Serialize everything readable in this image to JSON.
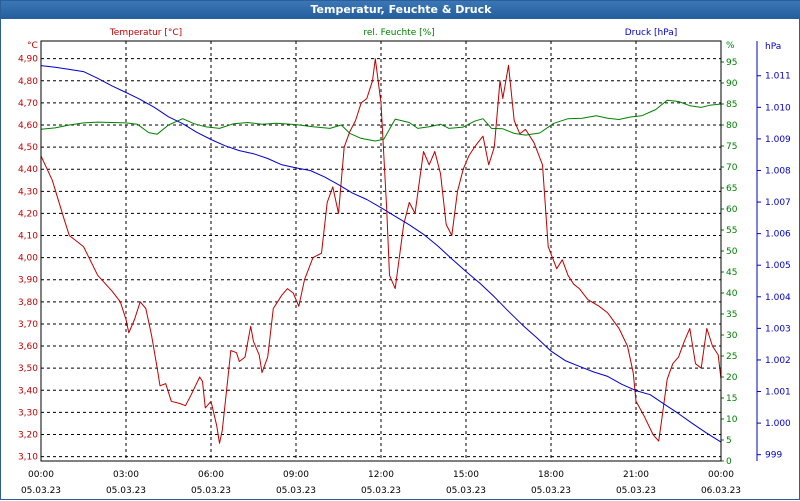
{
  "window": {
    "title": "Temperatur, Feuchte & Druck"
  },
  "colors": {
    "temperature": "#c00000",
    "humidity": "#008000",
    "pressure": "#0000cc",
    "titlebar": "#2c67a7",
    "grid": "#000000"
  },
  "chart_data": {
    "type": "line",
    "title": "Temperatur, Feuchte & Druck",
    "x": {
      "range_hours": [
        0,
        24
      ],
      "ticks": [
        {
          "time": "00:00",
          "date": "05.03.23"
        },
        {
          "time": "03:00",
          "date": "05.03.23"
        },
        {
          "time": "06:00",
          "date": "05.03.23"
        },
        {
          "time": "09:00",
          "date": "05.03.23"
        },
        {
          "time": "12:00",
          "date": "05.03.23"
        },
        {
          "time": "15:00",
          "date": "05.03.23"
        },
        {
          "time": "18:00",
          "date": "05.03.23"
        },
        {
          "time": "21:00",
          "date": "05.03.23"
        },
        {
          "time": "00:00",
          "date": "06.03.23"
        }
      ]
    },
    "axes": {
      "left": {
        "label": "Temperatur [°C]",
        "unit": "°C",
        "range": [
          3.08,
          4.98
        ],
        "ticks": [
          "3,10",
          "3,20",
          "3,30",
          "3,40",
          "3,50",
          "3,60",
          "3,70",
          "3,80",
          "3,90",
          "4,00",
          "4,10",
          "4,20",
          "4,30",
          "4,40",
          "4,50",
          "4,60",
          "4,70",
          "4,80",
          "4,90"
        ]
      },
      "middle": {
        "label": "rel. Feuchte [%]",
        "unit": "%",
        "range": [
          0,
          100
        ],
        "ticks": [
          "0",
          "5",
          "10",
          "15",
          "20",
          "25",
          "30",
          "35",
          "40",
          "45",
          "50",
          "55",
          "60",
          "65",
          "70",
          "75",
          "80",
          "85",
          "90",
          "95"
        ]
      },
      "right": {
        "label": "Druck [hPa]",
        "unit": "hPa",
        "range": [
          998.8,
          1012.1
        ],
        "ticks": [
          "999",
          "1.000",
          "1.001",
          "1.002",
          "1.003",
          "1.004",
          "1.005",
          "1.006",
          "1.007",
          "1.008",
          "1.009",
          "1.010",
          "1.011"
        ]
      }
    },
    "grid": true,
    "series": [
      {
        "name": "Temperatur [°C]",
        "axis": "left",
        "points": [
          [
            0,
            4.46
          ],
          [
            0.4,
            4.35
          ],
          [
            0.8,
            4.18
          ],
          [
            1,
            4.1
          ],
          [
            1.5,
            4.05
          ],
          [
            2,
            3.92
          ],
          [
            2.5,
            3.85
          ],
          [
            2.8,
            3.8
          ],
          [
            3,
            3.72
          ],
          [
            3.1,
            3.66
          ],
          [
            3.3,
            3.72
          ],
          [
            3.5,
            3.8
          ],
          [
            3.7,
            3.77
          ],
          [
            3.9,
            3.65
          ],
          [
            4.1,
            3.5
          ],
          [
            4.2,
            3.42
          ],
          [
            4.4,
            3.43
          ],
          [
            4.6,
            3.35
          ],
          [
            4.9,
            3.34
          ],
          [
            5.1,
            3.33
          ],
          [
            5.3,
            3.38
          ],
          [
            5.6,
            3.46
          ],
          [
            5.7,
            3.44
          ],
          [
            5.8,
            3.32
          ],
          [
            6,
            3.35
          ],
          [
            6.2,
            3.24
          ],
          [
            6.3,
            3.16
          ],
          [
            6.4,
            3.22
          ],
          [
            6.6,
            3.46
          ],
          [
            6.7,
            3.58
          ],
          [
            6.9,
            3.57
          ],
          [
            7,
            3.53
          ],
          [
            7.2,
            3.55
          ],
          [
            7.4,
            3.69
          ],
          [
            7.5,
            3.62
          ],
          [
            7.7,
            3.56
          ],
          [
            7.8,
            3.48
          ],
          [
            8,
            3.55
          ],
          [
            8.2,
            3.77
          ],
          [
            8.5,
            3.83
          ],
          [
            8.7,
            3.86
          ],
          [
            8.9,
            3.84
          ],
          [
            9.1,
            3.78
          ],
          [
            9.3,
            3.9
          ],
          [
            9.6,
            4.0
          ],
          [
            9.9,
            4.02
          ],
          [
            10.1,
            4.25
          ],
          [
            10.3,
            4.32
          ],
          [
            10.5,
            4.2
          ],
          [
            10.7,
            4.5
          ],
          [
            10.9,
            4.57
          ],
          [
            11.1,
            4.62
          ],
          [
            11.3,
            4.7
          ],
          [
            11.5,
            4.72
          ],
          [
            11.7,
            4.8
          ],
          [
            11.8,
            4.9
          ],
          [
            12,
            4.7
          ],
          [
            12.2,
            4.22
          ],
          [
            12.3,
            3.92
          ],
          [
            12.5,
            3.86
          ],
          [
            12.8,
            4.15
          ],
          [
            13,
            4.25
          ],
          [
            13.2,
            4.2
          ],
          [
            13.5,
            4.48
          ],
          [
            13.7,
            4.42
          ],
          [
            13.9,
            4.48
          ],
          [
            14.1,
            4.38
          ],
          [
            14.3,
            4.15
          ],
          [
            14.5,
            4.1
          ],
          [
            14.7,
            4.3
          ],
          [
            14.9,
            4.4
          ],
          [
            15.1,
            4.46
          ],
          [
            15.3,
            4.5
          ],
          [
            15.6,
            4.55
          ],
          [
            15.8,
            4.42
          ],
          [
            16,
            4.5
          ],
          [
            16.2,
            4.8
          ],
          [
            16.3,
            4.72
          ],
          [
            16.5,
            4.87
          ],
          [
            16.7,
            4.62
          ],
          [
            16.9,
            4.56
          ],
          [
            17.1,
            4.58
          ],
          [
            17.4,
            4.52
          ],
          [
            17.7,
            4.42
          ],
          [
            17.9,
            4.05
          ],
          [
            18.2,
            3.95
          ],
          [
            18.4,
            3.99
          ],
          [
            18.6,
            3.92
          ],
          [
            18.8,
            3.88
          ],
          [
            19,
            3.86
          ],
          [
            19.3,
            3.81
          ],
          [
            19.7,
            3.78
          ],
          [
            20,
            3.75
          ],
          [
            20.4,
            3.68
          ],
          [
            20.7,
            3.6
          ],
          [
            20.9,
            3.48
          ],
          [
            21,
            3.35
          ],
          [
            21.3,
            3.28
          ],
          [
            21.6,
            3.2
          ],
          [
            21.8,
            3.17
          ],
          [
            21.9,
            3.26
          ],
          [
            22.1,
            3.45
          ],
          [
            22.3,
            3.52
          ],
          [
            22.5,
            3.55
          ],
          [
            22.7,
            3.62
          ],
          [
            22.9,
            3.68
          ],
          [
            23.1,
            3.52
          ],
          [
            23.3,
            3.5
          ],
          [
            23.5,
            3.68
          ],
          [
            23.7,
            3.6
          ],
          [
            23.9,
            3.56
          ],
          [
            24,
            3.45
          ]
        ]
      },
      {
        "name": "rel. Feuchte [%]",
        "axis": "middle",
        "points": [
          [
            0,
            79
          ],
          [
            0.5,
            79.3
          ],
          [
            1,
            80
          ],
          [
            1.5,
            80.5
          ],
          [
            2,
            80.7
          ],
          [
            3,
            80.5
          ],
          [
            3.4,
            80.2
          ],
          [
            3.8,
            78.2
          ],
          [
            4.1,
            77.8
          ],
          [
            4.5,
            80
          ],
          [
            5,
            81.5
          ],
          [
            5.4,
            80.3
          ],
          [
            5.8,
            79.6
          ],
          [
            6.3,
            79.2
          ],
          [
            6.8,
            80.3
          ],
          [
            7.3,
            80.6
          ],
          [
            7.8,
            80.2
          ],
          [
            8.3,
            80.4
          ],
          [
            9,
            80.1
          ],
          [
            9.6,
            79.6
          ],
          [
            10.2,
            79.2
          ],
          [
            10.6,
            80
          ],
          [
            10.9,
            78
          ],
          [
            11.3,
            76.8
          ],
          [
            11.8,
            76.2
          ],
          [
            12.1,
            76.6
          ],
          [
            12.5,
            81.4
          ],
          [
            13,
            80.6
          ],
          [
            13.3,
            79.2
          ],
          [
            13.7,
            79.6
          ],
          [
            14.1,
            80.2
          ],
          [
            14.4,
            79.2
          ],
          [
            14.9,
            79.5
          ],
          [
            15.3,
            80.9
          ],
          [
            15.6,
            81.5
          ],
          [
            15.9,
            79.2
          ],
          [
            16.3,
            79.1
          ],
          [
            16.7,
            78
          ],
          [
            17.1,
            77.6
          ],
          [
            17.6,
            78.1
          ],
          [
            18.1,
            80.4
          ],
          [
            18.6,
            81.5
          ],
          [
            19.1,
            81.6
          ],
          [
            19.6,
            82.2
          ],
          [
            20,
            81.6
          ],
          [
            20.4,
            81.3
          ],
          [
            20.8,
            81.9
          ],
          [
            21.2,
            82.2
          ],
          [
            21.7,
            83.7
          ],
          [
            22.1,
            85.9
          ],
          [
            22.5,
            85.6
          ],
          [
            22.9,
            84.6
          ],
          [
            23.3,
            84.2
          ],
          [
            23.6,
            84.7
          ],
          [
            24,
            85
          ]
        ]
      },
      {
        "name": "Druck [hPa]",
        "axis": "right",
        "points": [
          [
            0,
            1011.32
          ],
          [
            0.5,
            1011.27
          ],
          [
            1,
            1011.2
          ],
          [
            1.5,
            1011.13
          ],
          [
            2,
            1010.92
          ],
          [
            2.5,
            1010.68
          ],
          [
            3,
            1010.47
          ],
          [
            3.5,
            1010.25
          ],
          [
            4,
            1010.0
          ],
          [
            4.5,
            1009.7
          ],
          [
            5,
            1009.48
          ],
          [
            5.5,
            1009.21
          ],
          [
            6,
            1008.98
          ],
          [
            6.5,
            1008.78
          ],
          [
            7,
            1008.63
          ],
          [
            7.5,
            1008.53
          ],
          [
            8,
            1008.38
          ],
          [
            8.5,
            1008.18
          ],
          [
            9,
            1008.08
          ],
          [
            9.5,
            1008.0
          ],
          [
            10,
            1007.8
          ],
          [
            10.5,
            1007.55
          ],
          [
            11,
            1007.28
          ],
          [
            11.5,
            1007.08
          ],
          [
            12,
            1006.82
          ],
          [
            12.5,
            1006.55
          ],
          [
            13,
            1006.28
          ],
          [
            13.5,
            1005.98
          ],
          [
            14,
            1005.61
          ],
          [
            14.5,
            1005.2
          ],
          [
            15,
            1004.8
          ],
          [
            15.5,
            1004.42
          ],
          [
            16,
            1004.0
          ],
          [
            16.5,
            1003.54
          ],
          [
            17,
            1003.1
          ],
          [
            17.5,
            1002.7
          ],
          [
            18,
            1002.28
          ],
          [
            18.5,
            1001.98
          ],
          [
            19,
            1001.8
          ],
          [
            19.5,
            1001.62
          ],
          [
            20,
            1001.48
          ],
          [
            20.5,
            1001.23
          ],
          [
            21,
            1001.03
          ],
          [
            21.5,
            1000.9
          ],
          [
            22,
            1000.6
          ],
          [
            22.5,
            1000.3
          ],
          [
            23,
            999.98
          ],
          [
            23.5,
            999.68
          ],
          [
            24,
            999.4
          ]
        ]
      }
    ]
  }
}
